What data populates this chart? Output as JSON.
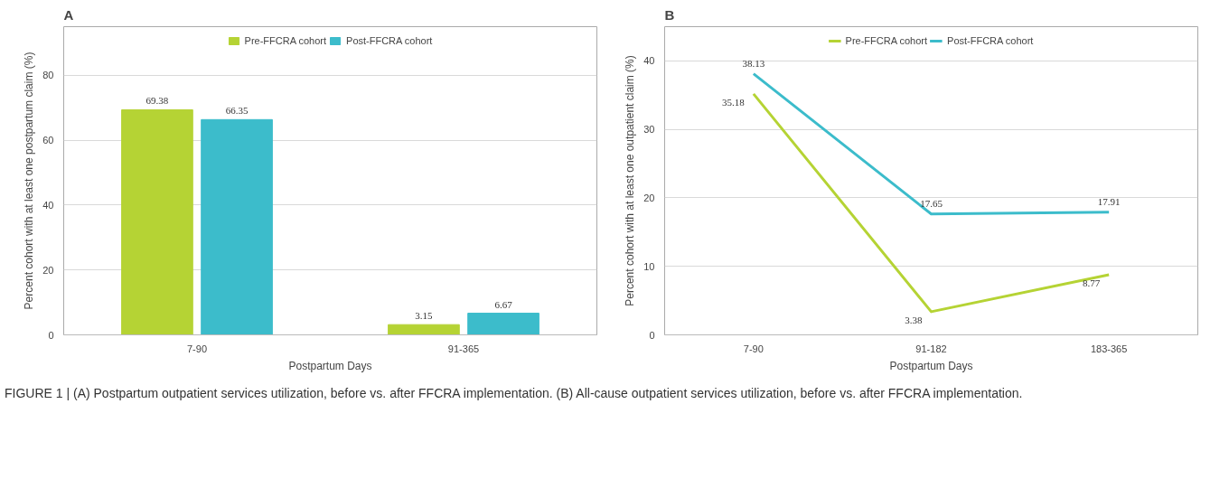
{
  "chart_data": [
    {
      "type": "bar",
      "title": "A",
      "xlabel": "Postpartum Days",
      "ylabel": "Percent cohort with at least one postpartum claim (%)",
      "categories": [
        "7-90",
        "91-365"
      ],
      "series": [
        {
          "name": "Pre-FFCRA cohort",
          "color": "#b5d334",
          "values": [
            69.38,
            3.15
          ]
        },
        {
          "name": "Post-FFCRA cohort",
          "color": "#3cbccb",
          "values": [
            66.35,
            6.67
          ]
        }
      ],
      "ylim": [
        0,
        95
      ],
      "yticks": [
        0,
        20,
        40,
        60,
        80
      ],
      "grid": "y",
      "legend": "top",
      "data_labels": true
    },
    {
      "type": "line",
      "title": "B",
      "xlabel": "Postpartum Days",
      "ylabel": "Percent cohort with at least one outpatient claim (%)",
      "categories": [
        "7-90",
        "91-182",
        "183-365"
      ],
      "series": [
        {
          "name": "Pre-FFCRA cohort",
          "color": "#b5d334",
          "values": [
            35.18,
            3.38,
            8.77
          ]
        },
        {
          "name": "Post-FFCRA cohort",
          "color": "#3cbccb",
          "values": [
            38.13,
            17.65,
            17.91
          ]
        }
      ],
      "ylim": [
        0,
        45
      ],
      "yticks": [
        0,
        10,
        20,
        30,
        40
      ],
      "grid": "y",
      "legend": "top",
      "data_labels": true,
      "marker": "none",
      "line_style": "solid",
      "annotations": [
        "FIGURE 1 | (A) Postpartum outpatient services utilization, before vs. after FFCRA implementation. (B) All-cause outpatient services utilization, before vs. after FFCRA implementation."
      ]
    }
  ]
}
